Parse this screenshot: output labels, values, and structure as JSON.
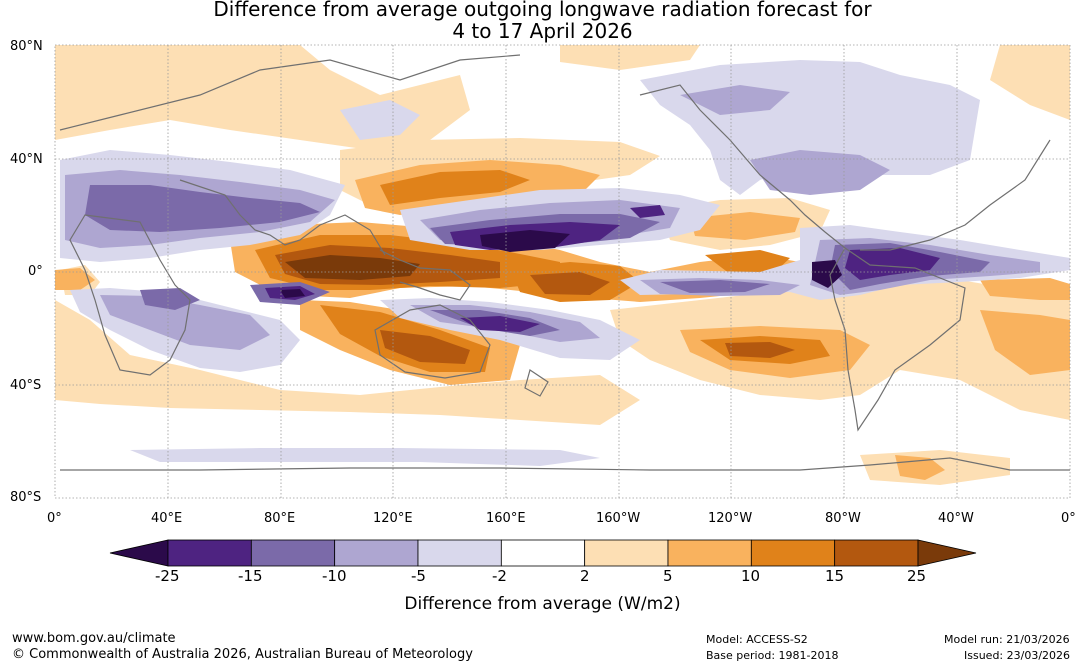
{
  "title_line1": "Difference from average outgoing longwave radiation forecast for",
  "title_line2": "4 to 17 April 2026",
  "lat_labels": [
    "80°N",
    "40°N",
    "0°",
    "40°S",
    "80°S"
  ],
  "lon_labels": [
    "0°",
    "40°E",
    "80°E",
    "120°E",
    "160°E",
    "160°W",
    "120°W",
    "80°W",
    "40°W",
    "0°"
  ],
  "colorbar": {
    "ticks": [
      "-25",
      "-15",
      "-10",
      "-5",
      "-2",
      "2",
      "5",
      "10",
      "15",
      "25"
    ],
    "colors": [
      "#2b0a4a",
      "#4e2381",
      "#7b6aa9",
      "#aea6d1",
      "#d9d8ec",
      "#ffffff",
      "#fddfb4",
      "#f9b25e",
      "#e0821a",
      "#b3580f",
      "#7a3a0a"
    ],
    "label": "Difference from average (W/m2)"
  },
  "footer": {
    "url": "www.bom.gov.au/climate",
    "copyright": "© Commonwealth of Australia 2026, Australian Bureau of Meteorology",
    "model": "Model: ACCESS-S2",
    "base_period": "Base period: 1981-2018",
    "model_run": "Model run: 21/03/2026",
    "issued": "Issued: 23/03/2026"
  }
}
